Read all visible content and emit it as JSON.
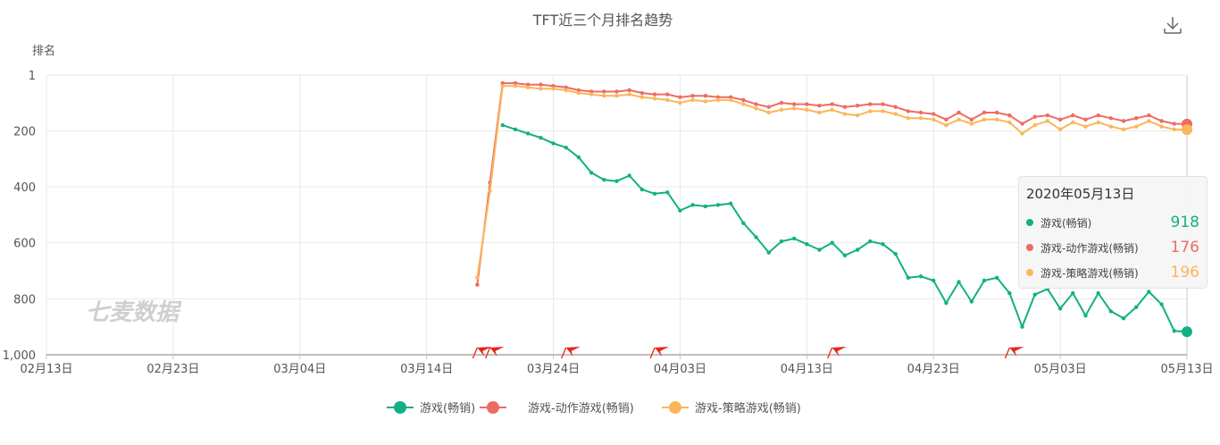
{
  "title": "TFT近三个月排名趋势",
  "watermark": "七麦数据",
  "colors": {
    "green": "#12b083",
    "red": "#ee6b63",
    "orange": "#fbb65a",
    "grid": "#e8e8e8",
    "axis": "#c9c9c9"
  },
  "chart_data": {
    "type": "line",
    "ylabel": "排名",
    "y_inverted": true,
    "ylim": [
      1,
      1000
    ],
    "y_ticks": [
      1,
      200,
      400,
      600,
      800,
      1000
    ],
    "y_tick_labels": [
      "1",
      "200",
      "400",
      "600",
      "800",
      "1,000"
    ],
    "x_tick_labels": [
      "02月13日",
      "02月23日",
      "03月04日",
      "03月14日",
      "03月24日",
      "04月03日",
      "04月13日",
      "04月23日",
      "05月03日",
      "05月13日"
    ],
    "x_start": "2020-02-13",
    "x_end": "2020-05-13",
    "grid": true,
    "legend_position": "bottom",
    "series": [
      {
        "name": "游戏(畅销)",
        "color": "#12b083",
        "points": [
          {
            "x": "2020-03-20",
            "y": 180
          },
          {
            "x": "2020-03-21",
            "y": 195
          },
          {
            "x": "2020-03-22",
            "y": 210
          },
          {
            "x": "2020-03-23",
            "y": 225
          },
          {
            "x": "2020-03-24",
            "y": 245
          },
          {
            "x": "2020-03-25",
            "y": 260
          },
          {
            "x": "2020-03-26",
            "y": 295
          },
          {
            "x": "2020-03-27",
            "y": 350
          },
          {
            "x": "2020-03-28",
            "y": 375
          },
          {
            "x": "2020-03-29",
            "y": 380
          },
          {
            "x": "2020-03-30",
            "y": 360
          },
          {
            "x": "2020-03-31",
            "y": 410
          },
          {
            "x": "2020-04-01",
            "y": 425
          },
          {
            "x": "2020-04-02",
            "y": 420
          },
          {
            "x": "2020-04-03",
            "y": 485
          },
          {
            "x": "2020-04-04",
            "y": 465
          },
          {
            "x": "2020-04-05",
            "y": 470
          },
          {
            "x": "2020-04-06",
            "y": 465
          },
          {
            "x": "2020-04-07",
            "y": 460
          },
          {
            "x": "2020-04-08",
            "y": 530
          },
          {
            "x": "2020-04-09",
            "y": 580
          },
          {
            "x": "2020-04-10",
            "y": 635
          },
          {
            "x": "2020-04-11",
            "y": 595
          },
          {
            "x": "2020-04-12",
            "y": 585
          },
          {
            "x": "2020-04-13",
            "y": 605
          },
          {
            "x": "2020-04-14",
            "y": 625
          },
          {
            "x": "2020-04-15",
            "y": 600
          },
          {
            "x": "2020-04-16",
            "y": 645
          },
          {
            "x": "2020-04-17",
            "y": 625
          },
          {
            "x": "2020-04-18",
            "y": 595
          },
          {
            "x": "2020-04-19",
            "y": 605
          },
          {
            "x": "2020-04-20",
            "y": 640
          },
          {
            "x": "2020-04-21",
            "y": 725
          },
          {
            "x": "2020-04-22",
            "y": 720
          },
          {
            "x": "2020-04-23",
            "y": 735
          },
          {
            "x": "2020-04-24",
            "y": 815
          },
          {
            "x": "2020-04-25",
            "y": 740
          },
          {
            "x": "2020-04-26",
            "y": 810
          },
          {
            "x": "2020-04-27",
            "y": 735
          },
          {
            "x": "2020-04-28",
            "y": 725
          },
          {
            "x": "2020-04-29",
            "y": 780
          },
          {
            "x": "2020-04-30",
            "y": 900
          },
          {
            "x": "2020-05-01",
            "y": 785
          },
          {
            "x": "2020-05-02",
            "y": 765
          },
          {
            "x": "2020-05-03",
            "y": 835
          },
          {
            "x": "2020-05-04",
            "y": 780
          },
          {
            "x": "2020-05-05",
            "y": 860
          },
          {
            "x": "2020-05-06",
            "y": 780
          },
          {
            "x": "2020-05-07",
            "y": 845
          },
          {
            "x": "2020-05-08",
            "y": 870
          },
          {
            "x": "2020-05-09",
            "y": 830
          },
          {
            "x": "2020-05-10",
            "y": 775
          },
          {
            "x": "2020-05-11",
            "y": 820
          },
          {
            "x": "2020-05-12",
            "y": 915
          },
          {
            "x": "2020-05-13",
            "y": 918
          }
        ]
      },
      {
        "name": "游戏-动作游戏(畅销)",
        "color": "#ee6b63",
        "points": [
          {
            "x": "2020-03-18",
            "y": 750
          },
          {
            "x": "2020-03-19",
            "y": 385
          },
          {
            "x": "2020-03-20",
            "y": 30
          },
          {
            "x": "2020-03-21",
            "y": 30
          },
          {
            "x": "2020-03-22",
            "y": 35
          },
          {
            "x": "2020-03-23",
            "y": 35
          },
          {
            "x": "2020-03-24",
            "y": 40
          },
          {
            "x": "2020-03-25",
            "y": 45
          },
          {
            "x": "2020-03-26",
            "y": 55
          },
          {
            "x": "2020-03-27",
            "y": 60
          },
          {
            "x": "2020-03-28",
            "y": 60
          },
          {
            "x": "2020-03-29",
            "y": 60
          },
          {
            "x": "2020-03-30",
            "y": 55
          },
          {
            "x": "2020-03-31",
            "y": 65
          },
          {
            "x": "2020-04-01",
            "y": 70
          },
          {
            "x": "2020-04-02",
            "y": 70
          },
          {
            "x": "2020-04-03",
            "y": 80
          },
          {
            "x": "2020-04-04",
            "y": 75
          },
          {
            "x": "2020-04-05",
            "y": 75
          },
          {
            "x": "2020-04-06",
            "y": 80
          },
          {
            "x": "2020-04-07",
            "y": 80
          },
          {
            "x": "2020-04-08",
            "y": 90
          },
          {
            "x": "2020-04-09",
            "y": 105
          },
          {
            "x": "2020-04-10",
            "y": 115
          },
          {
            "x": "2020-04-11",
            "y": 100
          },
          {
            "x": "2020-04-12",
            "y": 105
          },
          {
            "x": "2020-04-13",
            "y": 105
          },
          {
            "x": "2020-04-14",
            "y": 110
          },
          {
            "x": "2020-04-15",
            "y": 105
          },
          {
            "x": "2020-04-16",
            "y": 115
          },
          {
            "x": "2020-04-17",
            "y": 110
          },
          {
            "x": "2020-04-18",
            "y": 105
          },
          {
            "x": "2020-04-19",
            "y": 105
          },
          {
            "x": "2020-04-20",
            "y": 115
          },
          {
            "x": "2020-04-21",
            "y": 130
          },
          {
            "x": "2020-04-22",
            "y": 135
          },
          {
            "x": "2020-04-23",
            "y": 140
          },
          {
            "x": "2020-04-24",
            "y": 160
          },
          {
            "x": "2020-04-25",
            "y": 135
          },
          {
            "x": "2020-04-26",
            "y": 160
          },
          {
            "x": "2020-04-27",
            "y": 135
          },
          {
            "x": "2020-04-28",
            "y": 135
          },
          {
            "x": "2020-04-29",
            "y": 145
          },
          {
            "x": "2020-04-30",
            "y": 175
          },
          {
            "x": "2020-05-01",
            "y": 150
          },
          {
            "x": "2020-05-02",
            "y": 145
          },
          {
            "x": "2020-05-03",
            "y": 160
          },
          {
            "x": "2020-05-04",
            "y": 145
          },
          {
            "x": "2020-05-05",
            "y": 160
          },
          {
            "x": "2020-05-06",
            "y": 145
          },
          {
            "x": "2020-05-07",
            "y": 155
          },
          {
            "x": "2020-05-08",
            "y": 165
          },
          {
            "x": "2020-05-09",
            "y": 155
          },
          {
            "x": "2020-05-10",
            "y": 145
          },
          {
            "x": "2020-05-11",
            "y": 165
          },
          {
            "x": "2020-05-12",
            "y": 175
          },
          {
            "x": "2020-05-13",
            "y": 176
          }
        ]
      },
      {
        "name": "游戏-策略游戏(畅销)",
        "color": "#fbb65a",
        "points": [
          {
            "x": "2020-03-18",
            "y": 725
          },
          {
            "x": "2020-03-19",
            "y": 415
          },
          {
            "x": "2020-03-20",
            "y": 40
          },
          {
            "x": "2020-03-21",
            "y": 40
          },
          {
            "x": "2020-03-22",
            "y": 45
          },
          {
            "x": "2020-03-23",
            "y": 50
          },
          {
            "x": "2020-03-24",
            "y": 50
          },
          {
            "x": "2020-03-25",
            "y": 55
          },
          {
            "x": "2020-03-26",
            "y": 65
          },
          {
            "x": "2020-03-27",
            "y": 70
          },
          {
            "x": "2020-03-28",
            "y": 75
          },
          {
            "x": "2020-03-29",
            "y": 75
          },
          {
            "x": "2020-03-30",
            "y": 70
          },
          {
            "x": "2020-03-31",
            "y": 80
          },
          {
            "x": "2020-04-01",
            "y": 85
          },
          {
            "x": "2020-04-02",
            "y": 90
          },
          {
            "x": "2020-04-03",
            "y": 100
          },
          {
            "x": "2020-04-04",
            "y": 90
          },
          {
            "x": "2020-04-05",
            "y": 95
          },
          {
            "x": "2020-04-06",
            "y": 90
          },
          {
            "x": "2020-04-07",
            "y": 90
          },
          {
            "x": "2020-04-08",
            "y": 105
          },
          {
            "x": "2020-04-09",
            "y": 120
          },
          {
            "x": "2020-04-10",
            "y": 135
          },
          {
            "x": "2020-04-11",
            "y": 125
          },
          {
            "x": "2020-04-12",
            "y": 120
          },
          {
            "x": "2020-04-13",
            "y": 125
          },
          {
            "x": "2020-04-14",
            "y": 135
          },
          {
            "x": "2020-04-15",
            "y": 125
          },
          {
            "x": "2020-04-16",
            "y": 140
          },
          {
            "x": "2020-04-17",
            "y": 145
          },
          {
            "x": "2020-04-18",
            "y": 130
          },
          {
            "x": "2020-04-19",
            "y": 130
          },
          {
            "x": "2020-04-20",
            "y": 140
          },
          {
            "x": "2020-04-21",
            "y": 155
          },
          {
            "x": "2020-04-22",
            "y": 155
          },
          {
            "x": "2020-04-23",
            "y": 160
          },
          {
            "x": "2020-04-24",
            "y": 180
          },
          {
            "x": "2020-04-25",
            "y": 160
          },
          {
            "x": "2020-04-26",
            "y": 175
          },
          {
            "x": "2020-04-27",
            "y": 160
          },
          {
            "x": "2020-04-28",
            "y": 160
          },
          {
            "x": "2020-04-29",
            "y": 170
          },
          {
            "x": "2020-04-30",
            "y": 210
          },
          {
            "x": "2020-05-01",
            "y": 180
          },
          {
            "x": "2020-05-02",
            "y": 165
          },
          {
            "x": "2020-05-03",
            "y": 195
          },
          {
            "x": "2020-05-04",
            "y": 170
          },
          {
            "x": "2020-05-05",
            "y": 185
          },
          {
            "x": "2020-05-06",
            "y": 170
          },
          {
            "x": "2020-05-07",
            "y": 185
          },
          {
            "x": "2020-05-08",
            "y": 195
          },
          {
            "x": "2020-05-09",
            "y": 185
          },
          {
            "x": "2020-05-10",
            "y": 165
          },
          {
            "x": "2020-05-11",
            "y": 185
          },
          {
            "x": "2020-05-12",
            "y": 195
          },
          {
            "x": "2020-05-13",
            "y": 196
          }
        ]
      }
    ],
    "event_flags": [
      "2020-03-18",
      "2020-03-19",
      "2020-03-25",
      "2020-04-01",
      "2020-04-15",
      "2020-04-29"
    ]
  },
  "tooltip": {
    "date": "2020年05月13日",
    "rows": [
      {
        "name": "游戏(畅销)",
        "value": "918",
        "color": "#12b083"
      },
      {
        "name": "游戏-动作游戏(畅销)",
        "value": "176",
        "color": "#ee6b63"
      },
      {
        "name": "游戏-策略游戏(畅销)",
        "value": "196",
        "color": "#fbb65a"
      }
    ]
  },
  "toolbar": {
    "download_icon": "download-icon"
  }
}
